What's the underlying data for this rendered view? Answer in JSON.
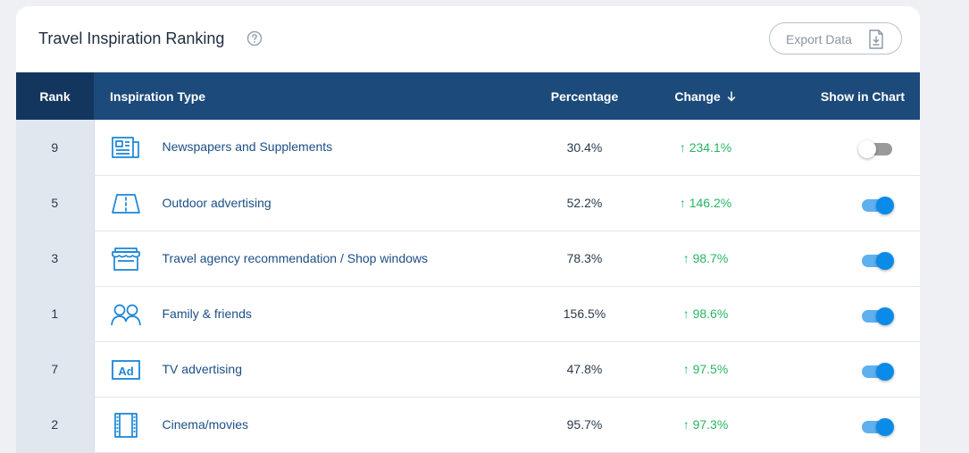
{
  "title": "Travel Inspiration Ranking",
  "export_label": "Export Data",
  "columns": {
    "rank": "Rank",
    "type": "Inspiration Type",
    "percentage": "Percentage",
    "change": "Change",
    "show": "Show in Chart"
  },
  "rows": [
    {
      "rank": "9",
      "icon": "newspaper-icon",
      "type": "Newspapers and Supplements",
      "percentage": "30.4%",
      "change": "↑ 234.1%",
      "show": false
    },
    {
      "rank": "5",
      "icon": "billboard-icon",
      "type": "Outdoor advertising",
      "percentage": "52.2%",
      "change": "↑ 146.2%",
      "show": true
    },
    {
      "rank": "3",
      "icon": "storefront-icon",
      "type": "Travel agency recommendation / Shop windows",
      "percentage": "78.3%",
      "change": "↑ 98.7%",
      "show": true
    },
    {
      "rank": "1",
      "icon": "people-icon",
      "type": "Family & friends",
      "percentage": "156.5%",
      "change": "↑ 98.6%",
      "show": true
    },
    {
      "rank": "7",
      "icon": "tv-ad-icon",
      "type": "TV advertising",
      "percentage": "47.8%",
      "change": "↑ 97.5%",
      "show": true
    },
    {
      "rank": "2",
      "icon": "film-icon",
      "type": "Cinema/movies",
      "percentage": "95.7%",
      "change": "↑ 97.3%",
      "show": true
    }
  ],
  "colors": {
    "header_bg": "#1c4a7a",
    "rank_header_bg": "#13365f",
    "positive_change": "#28b463",
    "toggle_on": "#0b8be8"
  }
}
